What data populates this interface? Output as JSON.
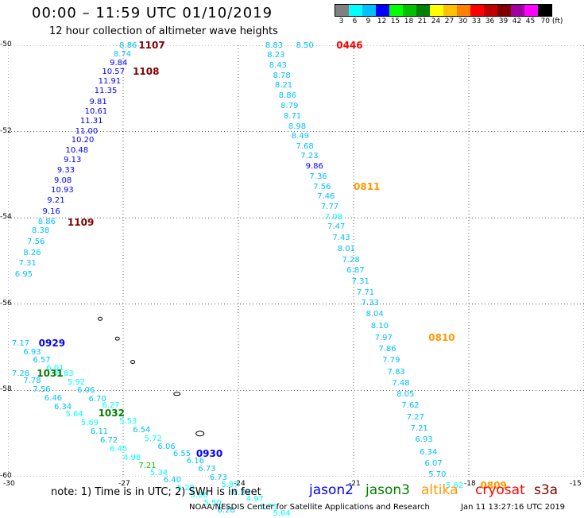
{
  "header": {
    "title": "00:00 – 11:59 UTC 01/10/2019",
    "subtitle": "12 hour collection of altimeter wave heights"
  },
  "colorbar": {
    "labels": [
      "3",
      "6",
      "9",
      "12",
      "15",
      "18",
      "21",
      "24",
      "27",
      "30",
      "33",
      "36",
      "39",
      "42",
      "45",
      "70 (ft)"
    ],
    "colors": [
      "#808080",
      "#00ffff",
      "#00bfff",
      "#0000ff",
      "#00ff00",
      "#00c000",
      "#008000",
      "#ffff00",
      "#ffc000",
      "#ff8000",
      "#ff0000",
      "#c00000",
      "#800000",
      "#a000a0",
      "#ff00ff",
      "#000000"
    ]
  },
  "map": {
    "y_ticks": [
      "-50",
      "-52",
      "-54",
      "-56",
      "-58",
      "-60"
    ],
    "x_ticks": [
      "-30",
      "-27",
      "-24",
      "-21",
      "-18",
      "-15"
    ],
    "islands": [
      "island-1",
      "island-2",
      "island-3",
      "island-4",
      "island-5",
      "island-6"
    ]
  },
  "chart_data": {
    "type": "scatter",
    "xlim": [
      -30,
      -15
    ],
    "ylim": [
      -60,
      -50
    ],
    "grid": true,
    "wave_labels": [
      {
        "text": "8.86",
        "lon": -27.1,
        "lat": -50.0,
        "c": "#00bfff"
      },
      {
        "text": "8.74",
        "lon": -27.25,
        "lat": -50.2,
        "c": "#00bfff"
      },
      {
        "text": "9.84",
        "lon": -27.35,
        "lat": -50.4,
        "c": "#0000ff"
      },
      {
        "text": "10.57",
        "lon": -27.55,
        "lat": -50.6,
        "c": "#0000ff"
      },
      {
        "text": "11.91",
        "lon": -27.65,
        "lat": -50.82,
        "c": "#0000ff"
      },
      {
        "text": "11.35",
        "lon": -27.75,
        "lat": -51.05,
        "c": "#0000ff"
      },
      {
        "text": "9.81",
        "lon": -27.88,
        "lat": -51.3,
        "c": "#0000ff"
      },
      {
        "text": "10.61",
        "lon": -28.0,
        "lat": -51.52,
        "c": "#0000ff"
      },
      {
        "text": "11.31",
        "lon": -28.12,
        "lat": -51.75,
        "c": "#0000ff"
      },
      {
        "text": "11.00",
        "lon": -28.25,
        "lat": -51.98,
        "c": "#0000ff"
      },
      {
        "text": "10.20",
        "lon": -28.35,
        "lat": -52.2,
        "c": "#0000ff"
      },
      {
        "text": "10.48",
        "lon": -28.5,
        "lat": -52.43,
        "c": "#0000ff"
      },
      {
        "text": "9.13",
        "lon": -28.55,
        "lat": -52.66,
        "c": "#0000ff"
      },
      {
        "text": "9.33",
        "lon": -28.72,
        "lat": -52.9,
        "c": "#0000ff"
      },
      {
        "text": "9.08",
        "lon": -28.8,
        "lat": -53.13,
        "c": "#0000ff"
      },
      {
        "text": "10.93",
        "lon": -28.88,
        "lat": -53.36,
        "c": "#0000ff"
      },
      {
        "text": "9.21",
        "lon": -28.98,
        "lat": -53.6,
        "c": "#0000ff"
      },
      {
        "text": "9.16",
        "lon": -29.1,
        "lat": -53.84,
        "c": "#0000ff"
      },
      {
        "text": "8.86",
        "lon": -29.22,
        "lat": -54.08,
        "c": "#00bfff"
      },
      {
        "text": "8.38",
        "lon": -29.38,
        "lat": -54.3,
        "c": "#00bfff"
      },
      {
        "text": "7.56",
        "lon": -29.5,
        "lat": -54.55,
        "c": "#00bfff"
      },
      {
        "text": "8.26",
        "lon": -29.6,
        "lat": -54.8,
        "c": "#00bfff"
      },
      {
        "text": "7.31",
        "lon": -29.72,
        "lat": -55.05,
        "c": "#00bfff"
      },
      {
        "text": "6.95",
        "lon": -29.82,
        "lat": -55.3,
        "c": "#00bfff"
      },
      {
        "text": "8.83",
        "lon": -23.3,
        "lat": -50.0,
        "c": "#00bfff"
      },
      {
        "text": "8.50",
        "lon": -22.5,
        "lat": -50.0,
        "c": "#00bfff"
      },
      {
        "text": "8.23",
        "lon": -23.25,
        "lat": -50.22,
        "c": "#00bfff"
      },
      {
        "text": "8.43",
        "lon": -23.2,
        "lat": -50.46,
        "c": "#00bfff"
      },
      {
        "text": "8.78",
        "lon": -23.1,
        "lat": -50.7,
        "c": "#00bfff"
      },
      {
        "text": "8.21",
        "lon": -23.05,
        "lat": -50.93,
        "c": "#00bfff"
      },
      {
        "text": "8.86",
        "lon": -22.95,
        "lat": -51.16,
        "c": "#00bfff"
      },
      {
        "text": "8.79",
        "lon": -22.9,
        "lat": -51.4,
        "c": "#00bfff"
      },
      {
        "text": "8.71",
        "lon": -22.82,
        "lat": -51.63,
        "c": "#00bfff"
      },
      {
        "text": "8.98",
        "lon": -22.7,
        "lat": -51.87,
        "c": "#00bfff"
      },
      {
        "text": "8.49",
        "lon": -22.62,
        "lat": -52.1,
        "c": "#00bfff"
      },
      {
        "text": "7.68",
        "lon": -22.5,
        "lat": -52.33,
        "c": "#00bfff"
      },
      {
        "text": "7.23",
        "lon": -22.38,
        "lat": -52.56,
        "c": "#00bfff"
      },
      {
        "text": "9.86",
        "lon": -22.25,
        "lat": -52.8,
        "c": "#0000ff"
      },
      {
        "text": "7.36",
        "lon": -22.15,
        "lat": -53.03,
        "c": "#00bfff"
      },
      {
        "text": "7.56",
        "lon": -22.05,
        "lat": -53.27,
        "c": "#00bfff"
      },
      {
        "text": "7.46",
        "lon": -21.95,
        "lat": -53.5,
        "c": "#00bfff"
      },
      {
        "text": "7.77",
        "lon": -21.85,
        "lat": -53.74,
        "c": "#00bfff"
      },
      {
        "text": "7.08",
        "lon": -21.75,
        "lat": -53.97,
        "c": "#00ffff"
      },
      {
        "text": "7.47",
        "lon": -21.68,
        "lat": -54.2,
        "c": "#00bfff"
      },
      {
        "text": "7.43",
        "lon": -21.55,
        "lat": -54.46,
        "c": "#00bfff"
      },
      {
        "text": "8.01",
        "lon": -21.42,
        "lat": -54.72,
        "c": "#00bfff"
      },
      {
        "text": "7.28",
        "lon": -21.3,
        "lat": -54.97,
        "c": "#00bfff"
      },
      {
        "text": "6.87",
        "lon": -21.18,
        "lat": -55.22,
        "c": "#00bfff"
      },
      {
        "text": "7.31",
        "lon": -21.05,
        "lat": -55.47,
        "c": "#00bfff"
      },
      {
        "text": "7.71",
        "lon": -20.92,
        "lat": -55.72,
        "c": "#00bfff"
      },
      {
        "text": "7.33",
        "lon": -20.8,
        "lat": -55.97,
        "c": "#00bfff"
      },
      {
        "text": "8.04",
        "lon": -20.68,
        "lat": -56.22,
        "c": "#00bfff"
      },
      {
        "text": "8.10",
        "lon": -20.55,
        "lat": -56.5,
        "c": "#00bfff"
      },
      {
        "text": "7.97",
        "lon": -20.45,
        "lat": -56.78,
        "c": "#00bfff"
      },
      {
        "text": "7.86",
        "lon": -20.35,
        "lat": -57.04,
        "c": "#00bfff"
      },
      {
        "text": "7.79",
        "lon": -20.25,
        "lat": -57.3,
        "c": "#00bfff"
      },
      {
        "text": "7.83",
        "lon": -20.12,
        "lat": -57.56,
        "c": "#00bfff"
      },
      {
        "text": "7.48",
        "lon": -20.0,
        "lat": -57.83,
        "c": "#00bfff"
      },
      {
        "text": "8.05",
        "lon": -19.88,
        "lat": -58.08,
        "c": "#00bfff"
      },
      {
        "text": "7.62",
        "lon": -19.75,
        "lat": -58.35,
        "c": "#00bfff"
      },
      {
        "text": "7.27",
        "lon": -19.62,
        "lat": -58.62,
        "c": "#00bfff"
      },
      {
        "text": "7.21",
        "lon": -19.52,
        "lat": -58.88,
        "c": "#00bfff"
      },
      {
        "text": "6.93",
        "lon": -19.4,
        "lat": -59.14,
        "c": "#00bfff"
      },
      {
        "text": "6.34",
        "lon": -19.28,
        "lat": -59.42,
        "c": "#00bfff"
      },
      {
        "text": "6.07",
        "lon": -19.15,
        "lat": -59.68,
        "c": "#00bfff"
      },
      {
        "text": "5.70",
        "lon": -19.05,
        "lat": -59.95,
        "c": "#00bfff"
      },
      {
        "text": "5.62",
        "lon": -18.6,
        "lat": -60.2,
        "c": "#00ffff"
      },
      {
        "text": "7.17",
        "lon": -29.9,
        "lat": -56.9,
        "c": "#00bfff"
      },
      {
        "text": "6.93",
        "lon": -29.6,
        "lat": -57.1,
        "c": "#00bfff"
      },
      {
        "text": "6.57",
        "lon": -29.35,
        "lat": -57.3,
        "c": "#00bfff"
      },
      {
        "text": "6.01",
        "lon": -29.0,
        "lat": -57.48,
        "c": "#00ffff"
      },
      {
        "text": "6.83",
        "lon": -28.75,
        "lat": -57.6,
        "c": "#00ffff"
      },
      {
        "text": "7.28",
        "lon": -29.9,
        "lat": -57.6,
        "c": "#00bfff"
      },
      {
        "text": "7.78",
        "lon": -29.6,
        "lat": -57.78,
        "c": "#00bfff"
      },
      {
        "text": "5.92",
        "lon": -28.45,
        "lat": -57.8,
        "c": "#00ffff"
      },
      {
        "text": "7.56",
        "lon": -29.35,
        "lat": -57.98,
        "c": "#00bfff"
      },
      {
        "text": "6.06",
        "lon": -28.2,
        "lat": -58.0,
        "c": "#00bfff"
      },
      {
        "text": "6.46",
        "lon": -29.05,
        "lat": -58.18,
        "c": "#00bfff"
      },
      {
        "text": "6.70",
        "lon": -27.9,
        "lat": -58.2,
        "c": "#00bfff"
      },
      {
        "text": "6.34",
        "lon": -28.8,
        "lat": -58.38,
        "c": "#00bfff"
      },
      {
        "text": "6.27",
        "lon": -27.55,
        "lat": -58.35,
        "c": "#00ffff"
      },
      {
        "text": "5.64",
        "lon": -28.5,
        "lat": -58.55,
        "c": "#00ffff"
      },
      {
        "text": "5.69",
        "lon": -28.1,
        "lat": -58.75,
        "c": "#00ffff"
      },
      {
        "text": "5.53",
        "lon": -27.1,
        "lat": -58.72,
        "c": "#00ffff"
      },
      {
        "text": "6.11",
        "lon": -27.85,
        "lat": -58.95,
        "c": "#00bfff"
      },
      {
        "text": "6.54",
        "lon": -26.75,
        "lat": -58.92,
        "c": "#00bfff"
      },
      {
        "text": "6.72",
        "lon": -27.6,
        "lat": -59.15,
        "c": "#00bfff"
      },
      {
        "text": "5.72",
        "lon": -26.45,
        "lat": -59.12,
        "c": "#00ffff"
      },
      {
        "text": "6.45",
        "lon": -27.35,
        "lat": -59.35,
        "c": "#00ffff"
      },
      {
        "text": "6.06",
        "lon": -26.1,
        "lat": -59.3,
        "c": "#00bfff"
      },
      {
        "text": "6.55",
        "lon": -25.7,
        "lat": -59.46,
        "c": "#00bfff"
      },
      {
        "text": "4.98",
        "lon": -27.0,
        "lat": -59.55,
        "c": "#00ffff"
      },
      {
        "text": "6.16",
        "lon": -25.35,
        "lat": -59.63,
        "c": "#00bfff"
      },
      {
        "text": "7.21",
        "lon": -26.6,
        "lat": -59.75,
        "c": "#00c000"
      },
      {
        "text": "6.73",
        "lon": -25.05,
        "lat": -59.82,
        "c": "#00bfff"
      },
      {
        "text": "5.34",
        "lon": -26.3,
        "lat": -59.9,
        "c": "#00ffff"
      },
      {
        "text": "6.73",
        "lon": -24.75,
        "lat": -60.02,
        "c": "#00bfff"
      },
      {
        "text": "6.40",
        "lon": -25.95,
        "lat": -60.08,
        "c": "#00bfff"
      },
      {
        "text": "5.87",
        "lon": -24.45,
        "lat": -60.18,
        "c": "#00ffff"
      },
      {
        "text": "5.28",
        "lon": -25.6,
        "lat": -60.25,
        "c": "#00ffff"
      },
      {
        "text": "6.39",
        "lon": -24.15,
        "lat": -60.36,
        "c": "#00bfff"
      },
      {
        "text": "5.86",
        "lon": -25.25,
        "lat": -60.42,
        "c": "#00ffff"
      },
      {
        "text": "4.97",
        "lon": -23.8,
        "lat": -60.52,
        "c": "#00ffff"
      },
      {
        "text": "5.50",
        "lon": -24.9,
        "lat": -60.6,
        "c": "#00ffff"
      },
      {
        "text": "5.75",
        "lon": -23.45,
        "lat": -60.7,
        "c": "#00ffff"
      },
      {
        "text": "6.26",
        "lon": -24.55,
        "lat": -60.78,
        "c": "#00bfff"
      },
      {
        "text": "5.64",
        "lon": -23.1,
        "lat": -60.85,
        "c": "#00ffff"
      }
    ],
    "time_labels": [
      {
        "text": "1107",
        "lon": -26.6,
        "lat": -50.0,
        "c": "#800000"
      },
      {
        "text": "1108",
        "lon": -26.75,
        "lat": -50.6,
        "c": "#800000"
      },
      {
        "text": "1109",
        "lon": -28.45,
        "lat": -54.1,
        "c": "#800000"
      },
      {
        "text": "0446",
        "lon": -21.45,
        "lat": -50.0,
        "c": "#ff0000"
      },
      {
        "text": "0811",
        "lon": -21.0,
        "lat": -53.27,
        "c": "#ff9900"
      },
      {
        "text": "0810",
        "lon": -19.05,
        "lat": -56.78,
        "c": "#ff9900"
      },
      {
        "text": "0809",
        "lon": -17.7,
        "lat": -60.2,
        "c": "#ff9900"
      },
      {
        "text": "0929",
        "lon": -29.2,
        "lat": -56.9,
        "c": "#0000ff"
      },
      {
        "text": "1031",
        "lon": -29.25,
        "lat": -57.6,
        "c": "#008000"
      },
      {
        "text": "1032",
        "lon": -27.65,
        "lat": -58.52,
        "c": "#008000"
      },
      {
        "text": "0930",
        "lon": -25.1,
        "lat": -59.46,
        "c": "#0000ff"
      }
    ]
  },
  "note": "note: 1) Time is in UTC; 2) SWH is in feet",
  "satellites": [
    {
      "name": "jason2",
      "color": "#0000ff"
    },
    {
      "name": "jason3",
      "color": "#008000"
    },
    {
      "name": "altika",
      "color": "#ff9900"
    },
    {
      "name": "cryosat",
      "color": "#ff0000"
    },
    {
      "name": "s3a",
      "color": "#800000"
    }
  ],
  "footer": {
    "left": "NOAA/NESDIS Center for Satellite Applications and Research",
    "right": "Jan 11 13:27:16 UTC 2019"
  }
}
